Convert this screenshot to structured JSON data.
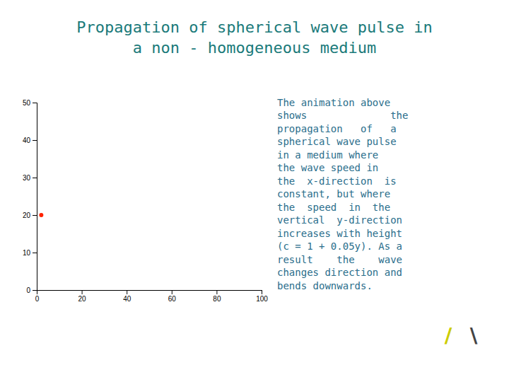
{
  "chart_data": {
    "type": "scatter",
    "title": "Propagation of spherical wave pulse in\na non - homogeneous medium",
    "x": [
      2
    ],
    "values": [
      20
    ],
    "color": "#ff2200",
    "xlim": [
      0,
      100
    ],
    "ylim": [
      0,
      50
    ],
    "xticks": [
      0,
      20,
      40,
      60,
      80,
      100
    ],
    "yticks": [
      0,
      10,
      20,
      30,
      40,
      50
    ],
    "annotations": [
      "The animation above\nshows              the\npropagation   of   a\nspherical wave pulse\nin a medium where\nthe wave speed in\nthe  x-direction  is\nconstant, but where\nthe  speed  in  the\nvertical  y-direction\nincreases with height\n(c = 1 + 0.05y). As a\nresult    the    wave\nchanges direction and\nbends downwards.",
      "/",
      "\\"
    ]
  }
}
